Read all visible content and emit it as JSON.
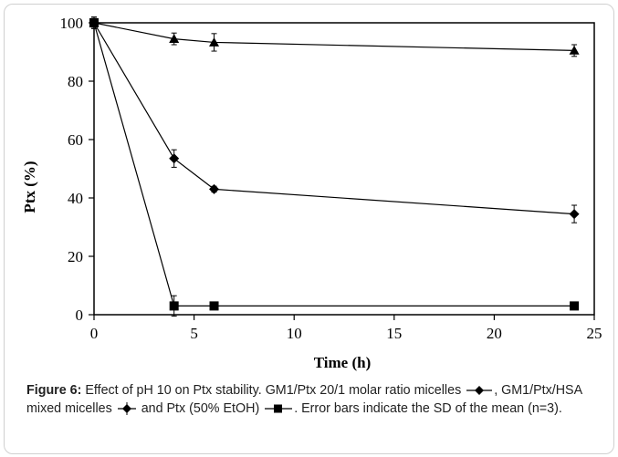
{
  "chart_data": {
    "type": "line",
    "xlabel": "Time (h)",
    "ylabel": "Ptx (%)",
    "xlim": [
      0,
      25
    ],
    "ylim": [
      0,
      100
    ],
    "xticks": [
      "0",
      "5",
      "10",
      "15",
      "20",
      "25"
    ],
    "yticks": [
      "0",
      "20",
      "40",
      "60",
      "80",
      "100"
    ],
    "grid": false,
    "series": [
      {
        "marker": "triangle",
        "x": [
          0,
          4,
          6,
          24
        ],
        "y": [
          100,
          94.5,
          93.3,
          90.5
        ],
        "err": [
          2,
          2,
          3,
          2
        ]
      },
      {
        "marker": "diamond",
        "x": [
          0,
          4,
          6,
          24
        ],
        "y": [
          100,
          53.5,
          43,
          34.5
        ],
        "err": [
          1.5,
          3,
          1,
          3
        ]
      },
      {
        "marker": "square",
        "x": [
          0,
          4,
          6,
          24
        ],
        "y": [
          100,
          3,
          3,
          3
        ],
        "err": [
          1.5,
          3.5,
          1,
          1
        ]
      }
    ]
  },
  "caption": {
    "label": "Figure 6:",
    "part1": " Effect of pH 10 on Ptx stability. GM1/Ptx 20/1 molar ratio micelles ",
    "part2": ", GM1/Ptx/HSA mixed micelles ",
    "part3": " and Ptx (50% EtOH) ",
    "part4": ". Error bars indicate the SD of the mean (n=3)."
  }
}
